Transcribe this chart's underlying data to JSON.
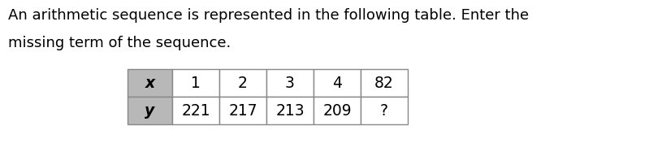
{
  "title_line1": "An arithmetic sequence is represented in the following table. Enter the",
  "title_line2": "missing term of the sequence.",
  "header_row": [
    "x",
    "1",
    "2",
    "3",
    "4",
    "82"
  ],
  "data_row": [
    "y",
    "221",
    "217",
    "213",
    "209",
    "?"
  ],
  "header_bg": "#b8b8b8",
  "cell_bg": "#ffffff",
  "table_border_color": "#888888",
  "text_color": "#000000",
  "title_fontsize": 13.0,
  "table_fontsize": 13.5,
  "font_family": "DejaVu Sans"
}
